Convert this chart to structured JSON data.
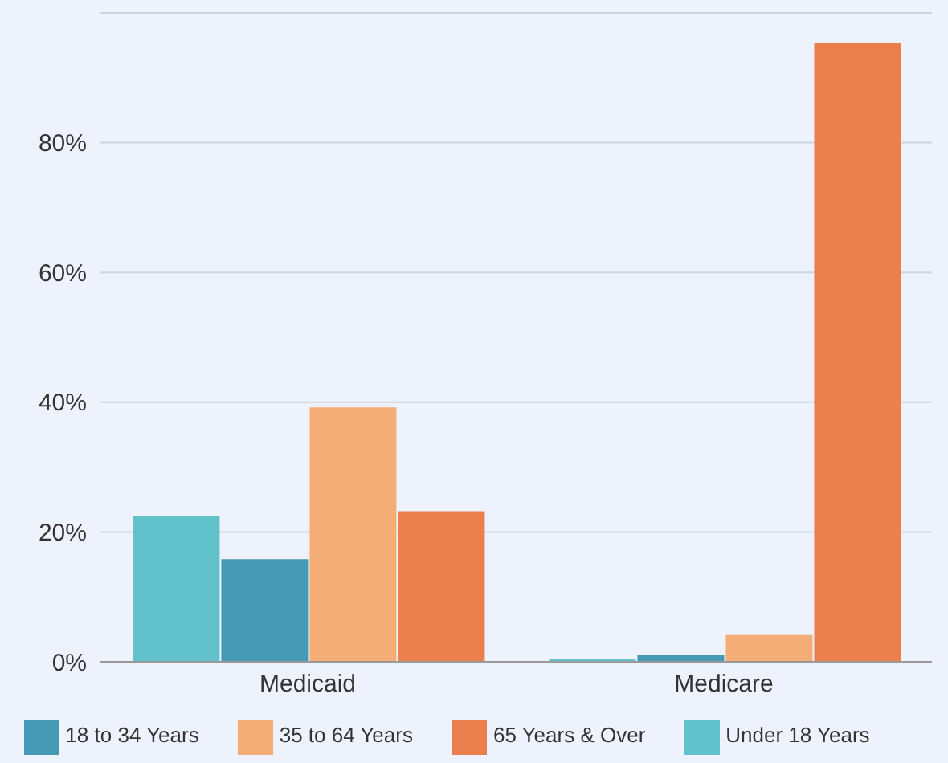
{
  "chart_data": {
    "type": "bar",
    "categories": [
      "Medicaid",
      "Medicare"
    ],
    "series": [
      {
        "name": "Under 18 Years",
        "color": "#62c2cc",
        "values": [
          22.4,
          0.5
        ]
      },
      {
        "name": "18 to 34 Years",
        "color": "#4599b5",
        "values": [
          15.8,
          1.0
        ]
      },
      {
        "name": "35 to 64 Years",
        "color": "#f5ad78",
        "values": [
          39.2,
          4.1
        ]
      },
      {
        "name": "65 Years & Over",
        "color": "#eb7f4d",
        "values": [
          23.2,
          95.3
        ]
      }
    ],
    "ylim": [
      0,
      100
    ],
    "yticks": [
      {
        "value": 0,
        "label": "0%"
      },
      {
        "value": 20,
        "label": "20%"
      },
      {
        "value": 40,
        "label": "40%"
      },
      {
        "value": 60,
        "label": "60%"
      },
      {
        "value": 80,
        "label": "80%"
      }
    ],
    "grid": "y",
    "legend": "bottom"
  }
}
